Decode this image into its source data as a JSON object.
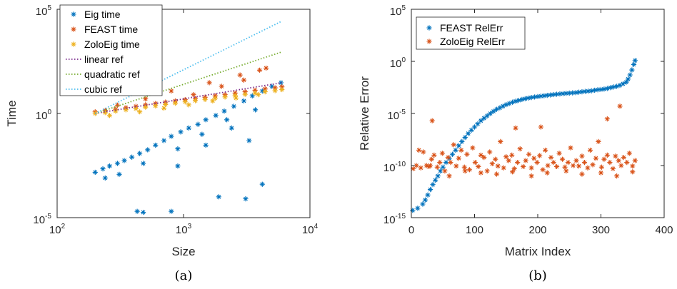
{
  "colors": {
    "blue": "#0072BD",
    "orange": "#D95319",
    "yellow": "#EDB120",
    "purple": "#7E2F8E",
    "green": "#77AC30",
    "cyan": "#4DBEEE"
  },
  "chart_data": [
    {
      "type": "scatter",
      "caption": "(a)",
      "xlabel": "Size",
      "ylabel": "Time",
      "xscale": "log",
      "yscale": "log",
      "xlim": [
        100,
        10000
      ],
      "ylim": [
        1e-05,
        100000
      ],
      "xticks": [
        {
          "base": "10",
          "exp": "2",
          "value": 100
        },
        {
          "base": "10",
          "exp": "3",
          "value": 1000
        },
        {
          "base": "10",
          "exp": "4",
          "value": 10000
        }
      ],
      "yticks": [
        {
          "base": "10",
          "exp": "5",
          "value": 100000
        },
        {
          "base": "10",
          "exp": "0",
          "value": 1
        },
        {
          "base": "10",
          "exp": "-5",
          "value": 1e-05
        }
      ],
      "legend_position": "top-left",
      "series": [
        {
          "name": "Eig time",
          "kind": "scatter",
          "marker": "asterisk",
          "color": "#0072BD",
          "x": [
            200,
            230,
            260,
            300,
            340,
            390,
            450,
            520,
            600,
            700,
            800,
            950,
            1100,
            1300,
            1500,
            1800,
            2100,
            2500,
            3000,
            3500,
            4200,
            5000,
            5900,
            240,
            310,
            480,
            900,
            1400,
            2200,
            3300,
            430,
            480,
            800,
            1900,
            3100,
            4200,
            900,
            1500,
            2400,
            3700
          ],
          "y": [
            0.0015,
            0.0022,
            0.003,
            0.004,
            0.0055,
            0.008,
            0.012,
            0.018,
            0.03,
            0.05,
            0.08,
            0.13,
            0.2,
            0.3,
            0.5,
            0.8,
            1.3,
            2.2,
            4,
            7,
            12,
            20,
            30,
            0.0008,
            0.0012,
            0.004,
            0.02,
            0.1,
            0.5,
            0.05,
            2e-05,
            1.8e-05,
            2e-05,
            0.0001,
            8e-05,
            0.0004,
            0.003,
            0.03,
            0.2,
            1.5
          ]
        },
        {
          "name": "FEAST time",
          "kind": "scatter",
          "marker": "asterisk",
          "color": "#D95319",
          "x": [
            200,
            240,
            290,
            350,
            420,
            500,
            600,
            720,
            860,
            1030,
            1240,
            1480,
            1780,
            2130,
            2560,
            3070,
            3680,
            4420,
            5300,
            6000,
            300,
            500,
            800,
            1200,
            2000,
            3000,
            4500,
            1600,
            2800,
            4000
          ],
          "y": [
            1.2,
            1.4,
            1.6,
            1.9,
            2.2,
            2.6,
            3,
            3.5,
            4,
            4.6,
            5.2,
            6,
            7,
            8,
            9.5,
            11,
            13,
            15,
            17,
            19,
            2.5,
            5,
            12,
            8,
            20,
            40,
            150,
            30,
            70,
            120
          ]
        },
        {
          "name": "ZoloEig time",
          "kind": "scatter",
          "marker": "asterisk",
          "color": "#EDB120",
          "x": [
            200,
            240,
            290,
            350,
            420,
            500,
            600,
            720,
            860,
            1030,
            1240,
            1480,
            1780,
            2130,
            2560,
            3070,
            3680,
            4420,
            5300,
            6000,
            260,
            450,
            700,
            1100,
            1700,
            2600,
            3900
          ],
          "y": [
            1.0,
            1.1,
            1.3,
            1.5,
            1.7,
            2,
            2.3,
            2.7,
            3.1,
            3.6,
            4.1,
            4.7,
            5.4,
            6.2,
            7.2,
            8.3,
            9.6,
            11,
            12.5,
            14,
            0.8,
            1.2,
            1.8,
            2.6,
            4,
            5.5,
            8
          ]
        },
        {
          "name": "linear ref",
          "kind": "line",
          "color": "#7E2F8E",
          "x": [
            200,
            6000
          ],
          "y": [
            1,
            30
          ]
        },
        {
          "name": "quadratic ref",
          "kind": "line",
          "color": "#77AC30",
          "x": [
            200,
            6000
          ],
          "y": [
            1,
            900
          ]
        },
        {
          "name": "cubic ref",
          "kind": "line",
          "color": "#4DBEEE",
          "x": [
            200,
            6000
          ],
          "y": [
            1,
            27000
          ]
        }
      ]
    },
    {
      "type": "scatter",
      "caption": "(b)",
      "xlabel": "Matrix Index",
      "ylabel": "Relative Error",
      "xscale": "linear",
      "yscale": "log",
      "xlim": [
        0,
        400
      ],
      "ylim": [
        1e-15,
        100000
      ],
      "xticks": [
        {
          "label": "0",
          "value": 0
        },
        {
          "label": "100",
          "value": 100
        },
        {
          "label": "200",
          "value": 200
        },
        {
          "label": "300",
          "value": 300
        },
        {
          "label": "400",
          "value": 400
        }
      ],
      "yticks": [
        {
          "base": "10",
          "exp": "5",
          "value": 100000
        },
        {
          "base": "10",
          "exp": "0",
          "value": 1
        },
        {
          "base": "10",
          "exp": "-5",
          "value": 1e-05
        },
        {
          "base": "10",
          "exp": "-10",
          "value": 1e-10
        },
        {
          "base": "10",
          "exp": "-15",
          "value": 1e-15
        }
      ],
      "legend_position": "top-left",
      "series": [
        {
          "name": "FEAST RelErr",
          "kind": "scatter",
          "marker": "asterisk",
          "color": "#0072BD",
          "x": [
            2,
            10,
            18,
            22,
            26,
            30,
            34,
            38,
            42,
            46,
            50,
            55,
            60,
            65,
            70,
            75,
            80,
            85,
            90,
            95,
            100,
            105,
            110,
            115,
            120,
            125,
            130,
            135,
            140,
            145,
            150,
            155,
            160,
            165,
            170,
            175,
            180,
            185,
            190,
            195,
            200,
            205,
            210,
            215,
            220,
            225,
            230,
            235,
            240,
            245,
            250,
            255,
            260,
            265,
            270,
            275,
            280,
            285,
            290,
            295,
            300,
            305,
            310,
            315,
            320,
            325,
            330,
            335,
            340,
            343,
            346,
            349,
            352,
            354
          ],
          "y": [
            5e-15,
            8e-15,
            2e-14,
            5e-14,
            1.5e-13,
            5e-13,
            1.5e-12,
            4e-12,
            1e-11,
            3e-11,
            7e-11,
            2e-10,
            5e-10,
            1.2e-09,
            3e-09,
            8e-09,
            2e-08,
            5e-08,
            1.2e-07,
            2.5e-07,
            5e-07,
            1e-06,
            2e-06,
            3.5e-06,
            6e-06,
            1e-05,
            1.6e-05,
            2.5e-05,
            3.5e-05,
            5e-05,
            7e-05,
            9e-05,
            0.00012,
            0.00015,
            0.00018,
            0.00022,
            0.00026,
            0.0003,
            0.00034,
            0.00038,
            0.00042,
            0.00046,
            0.0005,
            0.00055,
            0.0006,
            0.00065,
            0.0007,
            0.00075,
            0.0008,
            0.00085,
            0.0009,
            0.00095,
            0.001,
            0.0011,
            0.0012,
            0.0013,
            0.0014,
            0.0015,
            0.0017,
            0.0019,
            0.002,
            0.0022,
            0.0025,
            0.003,
            0.0035,
            0.004,
            0.005,
            0.007,
            0.01,
            0.02,
            0.05,
            0.15,
            0.5,
            1.2
          ]
        },
        {
          "name": "ZoloEig RelErr",
          "kind": "scatter",
          "marker": "asterisk",
          "color": "#D95319",
          "x": [
            3,
            8,
            12,
            15,
            19,
            24,
            28,
            32,
            36,
            41,
            45,
            49,
            53,
            58,
            62,
            67,
            71,
            75,
            79,
            84,
            88,
            92,
            97,
            101,
            106,
            110,
            115,
            120,
            124,
            128,
            133,
            137,
            141,
            146,
            150,
            154,
            159,
            163,
            168,
            172,
            177,
            181,
            186,
            190,
            194,
            199,
            203,
            208,
            212,
            216,
            221,
            225,
            230,
            234,
            239,
            243,
            248,
            252,
            256,
            261,
            265,
            270,
            274,
            279,
            283,
            287,
            292,
            296,
            301,
            305,
            310,
            314,
            319,
            323,
            328,
            332,
            336,
            341,
            345,
            350,
            354,
            30,
            60,
            85,
            110,
            135,
            160,
            190,
            215,
            245,
            270,
            300,
            325,
            350,
            33,
            165,
            205,
            310,
            330
          ],
          "y": [
            5e-11,
            1e-10,
            3e-09,
            6e-11,
            2e-09,
            1e-10,
            8e-11,
            4e-10,
            1e-09,
            7e-11,
            2e-10,
            1.5e-09,
            3e-11,
            6e-10,
            2e-10,
            1e-08,
            9e-11,
            5e-10,
            3e-09,
            7e-11,
            1.2e-09,
            4e-11,
            5e-09,
            2e-10,
            8e-11,
            1e-09,
            6e-10,
            3e-11,
            2e-09,
            1.5e-10,
            4e-10,
            9e-11,
            2e-08,
            6e-11,
            7e-10,
            3e-10,
            1e-09,
            5e-11,
            2e-10,
            4e-09,
            8e-11,
            3e-10,
            1.2e-09,
            6e-11,
            5e-10,
            2e-10,
            9e-10,
            4e-11,
            3e-09,
            1e-10,
            6e-10,
            2e-10,
            8e-11,
            1.5e-09,
            4e-10,
            7e-11,
            2e-10,
            5e-09,
            1e-10,
            3e-10,
            9e-11,
            8e-10,
            2e-10,
            6e-11,
            3e-09,
            1.2e-10,
            5e-10,
            2e-08,
            7e-11,
            4e-10,
            1e-09,
            2e-10,
            5e-11,
            8e-10,
            3e-10,
            1e-10,
            6e-10,
            2e-10,
            1.5e-09,
            9e-11,
            3e-10,
            1e-10,
            1e-11,
            3e-11,
            2e-11,
            1.5e-11,
            2.5e-11,
            1e-11,
            2e-11,
            3e-11,
            1.5e-11,
            2e-11,
            1e-11,
            2.5e-11,
            2e-06,
            4e-07,
            5e-07,
            3e-06,
            5e-05
          ]
        }
      ]
    }
  ]
}
